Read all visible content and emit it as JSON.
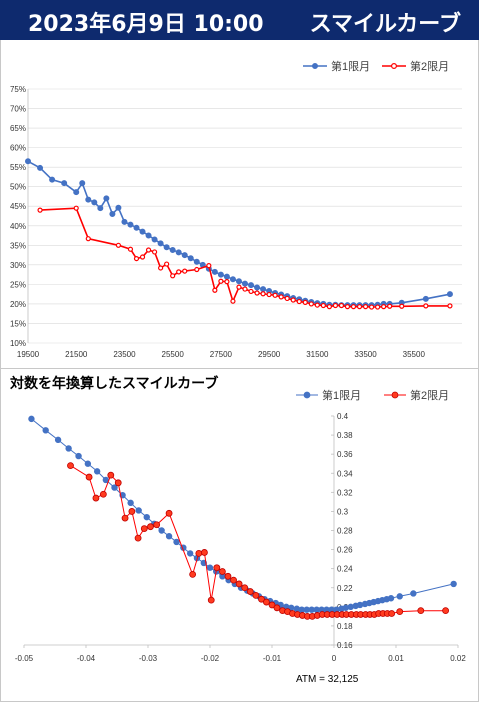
{
  "header": {
    "date": "2023年6月9日 10:00",
    "title": "スマイルカーブ"
  },
  "colors": {
    "series1": "#4472c4",
    "series2": "#ff0000",
    "banner": "#0e2a6e"
  },
  "chart_data": [
    {
      "type": "line",
      "title": "",
      "ylim": [
        0.1,
        0.75
      ],
      "xlim": [
        19500,
        37500
      ],
      "xticks": [
        "19500",
        "21500",
        "23500",
        "25500",
        "27500",
        "29500",
        "31500",
        "33500",
        "35500"
      ],
      "yticks": [
        "10%",
        "15%",
        "20%",
        "25%",
        "30%",
        "35%",
        "40%",
        "45%",
        "50%",
        "55%",
        "60%",
        "65%",
        "70%",
        "75%"
      ],
      "legend_position": "top-right",
      "series": [
        {
          "name": "第1限月",
          "x": [
            19500,
            20000,
            20500,
            21000,
            21500,
            21750,
            22000,
            22250,
            22500,
            22750,
            23000,
            23250,
            23500,
            23750,
            24000,
            24250,
            24500,
            24750,
            25000,
            25250,
            25500,
            25750,
            26000,
            26250,
            26500,
            26750,
            27000,
            27250,
            27500,
            27750,
            28000,
            28250,
            28500,
            28750,
            29000,
            29250,
            29500,
            29750,
            30000,
            30250,
            30500,
            30750,
            31000,
            31250,
            31500,
            31750,
            32000,
            32250,
            32500,
            32750,
            33000,
            33250,
            33500,
            33750,
            34000,
            34250,
            34500,
            35000,
            36000,
            37000
          ],
          "y": [
            0.565,
            0.548,
            0.518,
            0.509,
            0.486,
            0.509,
            0.467,
            0.46,
            0.445,
            0.47,
            0.43,
            0.446,
            0.41,
            0.403,
            0.395,
            0.385,
            0.375,
            0.365,
            0.355,
            0.345,
            0.338,
            0.332,
            0.325,
            0.317,
            0.308,
            0.3,
            0.29,
            0.282,
            0.275,
            0.27,
            0.263,
            0.258,
            0.252,
            0.248,
            0.242,
            0.238,
            0.233,
            0.228,
            0.224,
            0.22,
            0.215,
            0.212,
            0.208,
            0.205,
            0.202,
            0.2,
            0.198,
            0.198,
            0.197,
            0.197,
            0.197,
            0.197,
            0.197,
            0.197,
            0.198,
            0.2,
            0.2,
            0.203,
            0.213,
            0.225
          ]
        },
        {
          "name": "第2限月",
          "x": [
            20000,
            21500,
            22000,
            23250,
            23750,
            24000,
            24250,
            24500,
            24750,
            25000,
            25250,
            25500,
            25750,
            26000,
            26500,
            27000,
            27250,
            27500,
            27750,
            28000,
            28250,
            28500,
            28750,
            29000,
            29250,
            29500,
            29750,
            30000,
            30250,
            30500,
            30750,
            31000,
            31250,
            31500,
            31750,
            32000,
            32250,
            32500,
            32750,
            33000,
            33250,
            33500,
            33750,
            34000,
            34250,
            34500,
            35000,
            36000,
            37000
          ],
          "y": [
            0.44,
            0.445,
            0.367,
            0.35,
            0.34,
            0.316,
            0.32,
            0.338,
            0.333,
            0.292,
            0.302,
            0.272,
            0.282,
            0.284,
            0.288,
            0.298,
            0.235,
            0.258,
            0.257,
            0.207,
            0.243,
            0.238,
            0.232,
            0.228,
            0.226,
            0.224,
            0.222,
            0.218,
            0.214,
            0.21,
            0.206,
            0.204,
            0.2,
            0.197,
            0.196,
            0.193,
            0.196,
            0.196,
            0.193,
            0.193,
            0.193,
            0.193,
            0.192,
            0.192,
            0.193,
            0.194,
            0.194,
            0.195,
            0.195
          ]
        }
      ]
    },
    {
      "type": "scatter",
      "title": "対数を年換算したスマイルカーブ",
      "xlim": [
        -0.05,
        0.02
      ],
      "ylim": [
        0.16,
        0.4
      ],
      "xticks": [
        "-0.05",
        "-0.04",
        "-0.03",
        "-0.02",
        "-0.01",
        "0",
        "0.01",
        "0.02"
      ],
      "yticks": [
        "0.16",
        "0.18",
        "0.2",
        "0.22",
        "0.24",
        "0.26",
        "0.28",
        "0.3",
        "0.32",
        "0.34",
        "0.36",
        "0.38",
        "0.4"
      ],
      "legend_position": "top-right",
      "annotation": "ATM = 32,125",
      "series": [
        {
          "name": "第1限月",
          "x": [
            -0.0488,
            -0.0465,
            -0.0445,
            -0.0428,
            -0.0412,
            -0.0397,
            -0.0382,
            -0.0368,
            -0.0354,
            -0.0341,
            -0.0328,
            -0.0315,
            -0.0302,
            -0.029,
            -0.0278,
            -0.0266,
            -0.0254,
            -0.0243,
            -0.0232,
            -0.0221,
            -0.021,
            -0.02,
            -0.019,
            -0.018,
            -0.017,
            -0.016,
            -0.015,
            -0.014,
            -0.0131,
            -0.0121,
            -0.0112,
            -0.0103,
            -0.0094,
            -0.0086,
            -0.0077,
            -0.0069,
            -0.006,
            -0.0052,
            -0.0044,
            -0.0036,
            -0.0028,
            -0.002,
            -0.0012,
            -0.0004,
            0.0004,
            0.0012,
            0.0019,
            0.0027,
            0.0035,
            0.0042,
            0.005,
            0.0057,
            0.0064,
            0.0071,
            0.0078,
            0.0085,
            0.0092,
            0.0106,
            0.0128,
            0.0193
          ],
          "y": [
            0.397,
            0.385,
            0.375,
            0.366,
            0.358,
            0.35,
            0.342,
            0.333,
            0.325,
            0.317,
            0.309,
            0.301,
            0.294,
            0.287,
            0.28,
            0.274,
            0.268,
            0.262,
            0.256,
            0.251,
            0.246,
            0.241,
            0.237,
            0.232,
            0.228,
            0.224,
            0.22,
            0.217,
            0.214,
            0.211,
            0.208,
            0.206,
            0.204,
            0.202,
            0.2,
            0.199,
            0.198,
            0.197,
            0.197,
            0.197,
            0.197,
            0.197,
            0.197,
            0.197,
            0.197,
            0.198,
            0.199,
            0.2,
            0.201,
            0.202,
            0.203,
            0.204,
            0.205,
            0.206,
            0.207,
            0.208,
            0.209,
            0.211,
            0.214,
            0.224
          ]
        },
        {
          "name": "第2限月",
          "x": [
            -0.0425,
            -0.0395,
            -0.0384,
            -0.0372,
            -0.036,
            -0.0348,
            -0.0337,
            -0.0326,
            -0.0316,
            -0.0306,
            -0.0296,
            -0.0286,
            -0.0266,
            -0.0228,
            -0.0218,
            -0.0209,
            -0.0198,
            -0.0189,
            -0.018,
            -0.0171,
            -0.0162,
            -0.0153,
            -0.0144,
            -0.0135,
            -0.0126,
            -0.0117,
            -0.0109,
            -0.01,
            -0.0092,
            -0.0083,
            -0.0075,
            -0.0067,
            -0.0059,
            -0.0051,
            -0.0043,
            -0.0035,
            -0.0027,
            -0.0019,
            -0.0011,
            -0.0003,
            0.0005,
            0.0013,
            0.002,
            0.0028,
            0.0036,
            0.0043,
            0.0051,
            0.0058,
            0.0065,
            0.0072,
            0.0079,
            0.0086,
            0.0093,
            0.0106,
            0.014,
            0.018
          ],
          "y": [
            0.348,
            0.336,
            0.314,
            0.318,
            0.338,
            0.33,
            0.293,
            0.3,
            0.272,
            0.282,
            0.284,
            0.286,
            0.298,
            0.234,
            0.256,
            0.257,
            0.207,
            0.241,
            0.237,
            0.232,
            0.228,
            0.224,
            0.22,
            0.216,
            0.212,
            0.208,
            0.205,
            0.202,
            0.199,
            0.196,
            0.195,
            0.193,
            0.192,
            0.191,
            0.19,
            0.19,
            0.191,
            0.192,
            0.192,
            0.192,
            0.192,
            0.192,
            0.192,
            0.192,
            0.192,
            0.192,
            0.192,
            0.192,
            0.192,
            0.193,
            0.193,
            0.193,
            0.193,
            0.195,
            0.196,
            0.196
          ]
        }
      ]
    }
  ]
}
